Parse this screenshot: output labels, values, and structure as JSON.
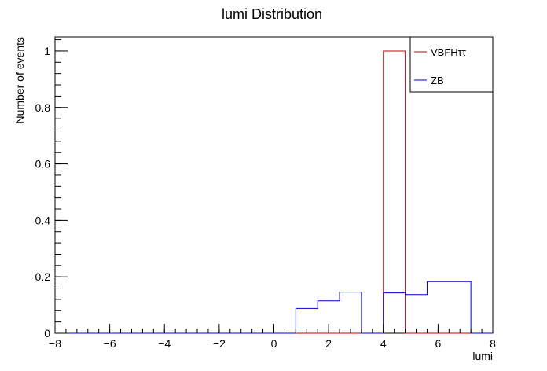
{
  "chart_data": {
    "type": "bar",
    "title": "lumi Distribution",
    "xlabel": "lumi",
    "ylabel": "Number of events",
    "xlim": [
      -8,
      8
    ],
    "ylim": [
      0,
      1.05
    ],
    "x_ticks": [
      "−8",
      "−6",
      "−4",
      "−2",
      "0",
      "2",
      "4",
      "6",
      "8"
    ],
    "y_ticks": [
      "0",
      "0.2",
      "0.4",
      "0.6",
      "0.8",
      "1"
    ],
    "grid": false,
    "legend_position": "top-right",
    "bin_edges": [
      -8,
      -7.2,
      -6.4,
      -5.6,
      -4.8,
      -4.0,
      -3.2,
      -2.4,
      -1.6,
      -0.8,
      0,
      0.8,
      1.6,
      2.4,
      3.2,
      4.0,
      4.8,
      5.6,
      6.4,
      7.2,
      8.0
    ],
    "series": [
      {
        "name": "VBFHττ",
        "color": "#cc0000",
        "values": [
          0,
          0,
          0,
          0,
          0,
          0,
          0,
          0,
          0,
          0,
          0,
          0,
          0,
          0,
          0,
          1.0,
          0,
          0,
          0,
          0
        ]
      },
      {
        "name": "ZB",
        "color": "#0000cc",
        "values": [
          0,
          0,
          0,
          0,
          0,
          0,
          0,
          0,
          0,
          0,
          0,
          0.088,
          0.115,
          0.146,
          0,
          0.143,
          0.137,
          0.183,
          0.183,
          0
        ]
      }
    ]
  }
}
